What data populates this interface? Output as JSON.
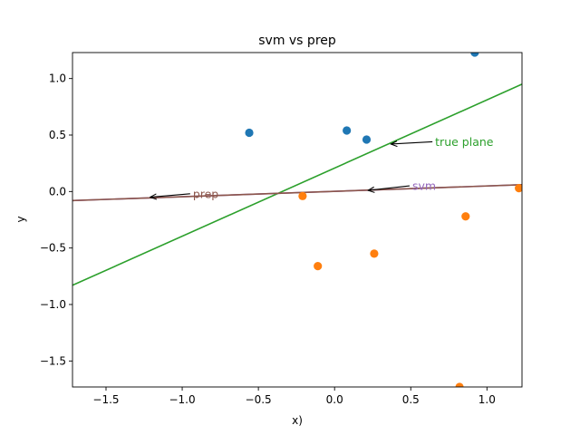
{
  "chart_data": {
    "type": "scatter",
    "title": "svm vs prep",
    "xlabel": "x)",
    "ylabel": "y",
    "xlim": [
      -1.72,
      1.23
    ],
    "ylim": [
      -1.73,
      1.23
    ],
    "xticks": [
      {
        "value": -1.5,
        "label": "−1.5"
      },
      {
        "value": -1.0,
        "label": "−1.0"
      },
      {
        "value": -0.5,
        "label": "−0.5"
      },
      {
        "value": 0.0,
        "label": "0.0"
      },
      {
        "value": 0.5,
        "label": "0.5"
      },
      {
        "value": 1.0,
        "label": "1.0"
      }
    ],
    "yticks": [
      {
        "value": 1.0,
        "label": "1.0"
      },
      {
        "value": 0.5,
        "label": "0.5"
      },
      {
        "value": 0.0,
        "label": "0.0"
      },
      {
        "value": -0.5,
        "label": "−0.5"
      },
      {
        "value": -1.0,
        "label": "−1.0"
      },
      {
        "value": -1.5,
        "label": "−1.5"
      }
    ],
    "grid": false,
    "series": [
      {
        "color": "#1f77b4",
        "points": [
          [
            -0.56,
            0.52
          ],
          [
            0.08,
            0.54
          ],
          [
            0.21,
            0.46
          ],
          [
            0.92,
            1.23
          ]
        ]
      },
      {
        "color": "#ff7f0e",
        "points": [
          [
            -0.21,
            -0.04
          ],
          [
            -0.11,
            -0.66
          ],
          [
            0.26,
            -0.55
          ],
          [
            0.86,
            -0.22
          ],
          [
            1.21,
            0.03
          ],
          [
            0.82,
            -1.73
          ]
        ]
      }
    ],
    "lines": [
      {
        "id": "true-plane",
        "label": "true plane",
        "color": "#2ca02c",
        "start": [
          -1.72,
          -0.83
        ],
        "end": [
          1.23,
          0.95
        ]
      },
      {
        "id": "svm",
        "label": "svm",
        "color": "#9467bd",
        "start": [
          -1.72,
          -0.08
        ],
        "end": [
          1.23,
          0.06
        ]
      },
      {
        "id": "prep",
        "label": "prep",
        "color": "#8c564b",
        "start": [
          -1.72,
          -0.08
        ],
        "end": [
          1.23,
          0.06
        ]
      }
    ],
    "annotations": [
      {
        "id": "true-plane",
        "text": "true plane",
        "color": "#2ca02c",
        "text_xy": [
          0.66,
          0.44
        ],
        "point_xy": [
          0.37,
          0.42
        ]
      },
      {
        "id": "svm",
        "text": "svm",
        "color": "#9467bd",
        "text_xy": [
          0.51,
          0.05
        ],
        "point_xy": [
          0.22,
          0.01
        ]
      },
      {
        "id": "prep",
        "text": "prep",
        "color": "#8c564b",
        "text_xy": [
          -0.93,
          -0.02
        ],
        "point_xy": [
          -1.21,
          -0.05
        ]
      }
    ]
  }
}
